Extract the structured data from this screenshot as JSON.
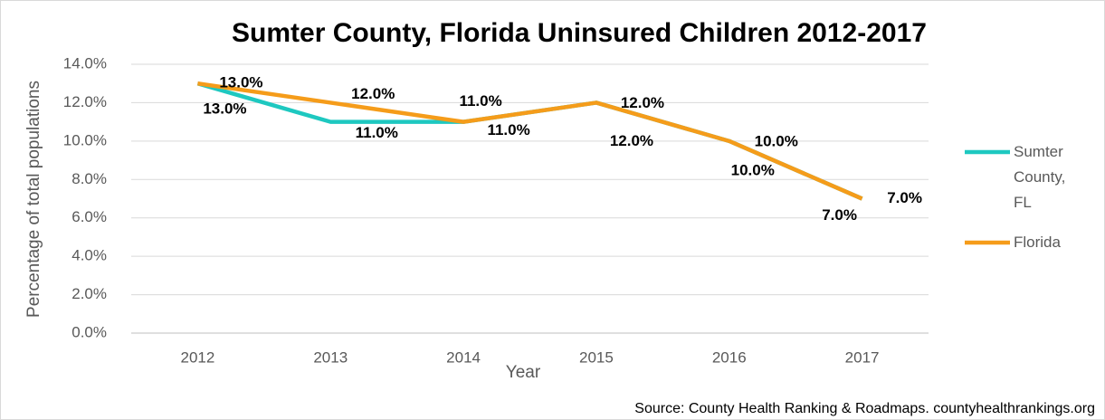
{
  "chart_data": {
    "type": "line",
    "title": "Sumter County, Florida Uninsured Children 2012-2017",
    "x_label": "Year",
    "y_label": "Percentage of total populations",
    "source": "Source: County Health Ranking & Roadmaps. countyhealthrankings.org",
    "categories": [
      "2012",
      "2013",
      "2014",
      "2015",
      "2016",
      "2017"
    ],
    "series": [
      {
        "name": "Sumter County, FL",
        "color": "#1ec8c0",
        "values": [
          13,
          11,
          11,
          12,
          10,
          7
        ],
        "value_labels": [
          "13.0%",
          "11.0%",
          "11.0%",
          "12.0%",
          "10.0%",
          "7.0%"
        ]
      },
      {
        "name": "Florida",
        "color": "#f59c1a",
        "values": [
          13,
          12,
          11,
          12,
          10,
          7
        ],
        "value_labels": [
          "13.0%",
          "12.0%",
          "11.0%",
          "12.0%",
          "10.0%",
          "7.0%"
        ]
      }
    ],
    "ylim": [
      0,
      14
    ],
    "yticks": [
      {
        "value": 0,
        "label": "0.0%"
      },
      {
        "value": 2,
        "label": "2.0%"
      },
      {
        "value": 4,
        "label": "4.0%"
      },
      {
        "value": 6,
        "label": "6.0%"
      },
      {
        "value": 8,
        "label": "8.0%"
      },
      {
        "value": 10,
        "label": "10.0%"
      },
      {
        "value": 12,
        "label": "12.0%"
      },
      {
        "value": 14,
        "label": "14.0%"
      }
    ],
    "grid": true,
    "legend": "right"
  }
}
